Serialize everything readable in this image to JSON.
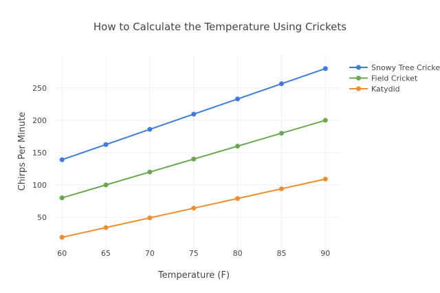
{
  "chart_data": {
    "type": "line",
    "title": "How to Calculate the Temperature Using Crickets",
    "xlabel": "Temperature (F)",
    "ylabel": "Chirps Per Minute",
    "x": [
      60,
      65,
      70,
      75,
      80,
      85,
      90
    ],
    "xticks": [
      60,
      65,
      70,
      75,
      80,
      85,
      90
    ],
    "yticks": [
      50,
      100,
      150,
      200,
      250
    ],
    "xlim": [
      59.2,
      91.7
    ],
    "ylim": [
      3,
      301
    ],
    "grid": true,
    "legend_position": "top-right",
    "series": [
      {
        "name": "Snowy Tree Cricket",
        "color": "#3d7bdc",
        "values": [
          139,
          162.5,
          186,
          209.5,
          233,
          256.5,
          280
        ]
      },
      {
        "name": "Field Cricket",
        "color": "#6aa84f",
        "values": [
          80,
          100,
          120,
          140,
          160,
          180,
          200
        ]
      },
      {
        "name": "Katydid",
        "color": "#ee8e2c",
        "values": [
          19,
          34,
          49,
          64,
          79,
          94,
          109
        ]
      }
    ]
  }
}
